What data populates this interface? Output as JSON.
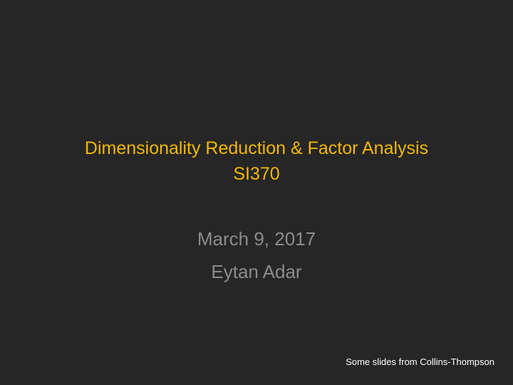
{
  "slide": {
    "title_lines": [
      "Dimensionality Reduction & Factor Analysis",
      "SI370"
    ],
    "subtitle_lines": [
      "March 9, 2017",
      "Eytan Adar"
    ],
    "footer_note": "Some slides from Collins-Thompson"
  },
  "colors": {
    "background": "#262626",
    "title": "#F2B705",
    "subtitle": "#8C8C8C",
    "footer": "#FFFFFF"
  }
}
